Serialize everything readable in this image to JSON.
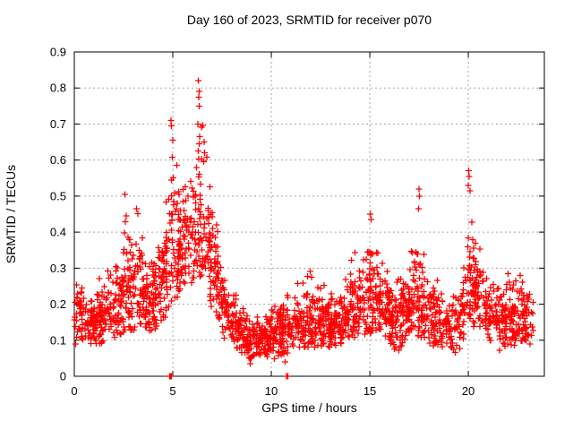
{
  "chart_data": {
    "type": "scatter",
    "title": "Day 160 of 2023, SRMTID for receiver p070",
    "xlabel": "GPS time / hours",
    "ylabel": "SRMTID / TECUs",
    "xlim": [
      0,
      23.86
    ],
    "ylim": [
      0,
      0.9
    ],
    "xticks": [
      0,
      5,
      10,
      15,
      20
    ],
    "xtick_labels": [
      "0",
      "5",
      "10",
      "15",
      "20"
    ],
    "yticks": [
      0,
      0.1,
      0.2,
      0.3,
      0.4,
      0.5,
      0.6,
      0.7,
      0.8,
      0.9
    ],
    "ytick_labels": [
      "0",
      "0.1",
      "0.2",
      "0.3",
      "0.4",
      "0.5",
      "0.6",
      "0.7",
      "0.8",
      "0.9"
    ],
    "grid": true,
    "legend": "none",
    "marker": "plus",
    "marker_size": 7,
    "marker_color": "#ff0000",
    "grid_color": "#a8a8a8",
    "axis_color": "#000000",
    "background": "#ffffff",
    "x_start": 0.0,
    "x_end": 23.3,
    "approx_points": 2300,
    "seed": 7,
    "density_profile": [
      [
        0.0,
        0.16,
        0.05,
        0.27
      ],
      [
        0.4,
        0.17,
        0.08,
        0.26
      ],
      [
        0.9,
        0.15,
        0.09,
        0.22
      ],
      [
        1.3,
        0.16,
        0.09,
        0.3
      ],
      [
        1.8,
        0.18,
        0.1,
        0.3
      ],
      [
        2.3,
        0.2,
        0.1,
        0.36
      ],
      [
        2.6,
        0.24,
        0.12,
        0.5
      ],
      [
        2.9,
        0.24,
        0.12,
        0.42
      ],
      [
        3.2,
        0.27,
        0.14,
        0.47
      ],
      [
        3.6,
        0.22,
        0.13,
        0.35
      ],
      [
        4.0,
        0.2,
        0.12,
        0.31
      ],
      [
        4.4,
        0.25,
        0.15,
        0.41
      ],
      [
        4.7,
        0.31,
        0.17,
        0.52
      ],
      [
        4.95,
        0.37,
        0.2,
        0.68
      ],
      [
        5.2,
        0.37,
        0.21,
        0.6
      ],
      [
        5.5,
        0.37,
        0.22,
        0.55
      ],
      [
        5.8,
        0.39,
        0.24,
        0.62
      ],
      [
        6.1,
        0.41,
        0.26,
        0.7
      ],
      [
        6.35,
        0.43,
        0.27,
        0.8
      ],
      [
        6.6,
        0.39,
        0.24,
        0.66
      ],
      [
        6.9,
        0.34,
        0.2,
        0.55
      ],
      [
        7.2,
        0.27,
        0.15,
        0.45
      ],
      [
        7.6,
        0.2,
        0.1,
        0.33
      ],
      [
        8.0,
        0.15,
        0.08,
        0.26
      ],
      [
        8.5,
        0.12,
        0.06,
        0.2
      ],
      [
        9.0,
        0.1,
        0.03,
        0.16
      ],
      [
        9.5,
        0.1,
        0.04,
        0.17
      ],
      [
        10.0,
        0.12,
        0.05,
        0.19
      ],
      [
        10.5,
        0.13,
        0.04,
        0.21
      ],
      [
        11.0,
        0.15,
        0.07,
        0.24
      ],
      [
        11.5,
        0.15,
        0.08,
        0.27
      ],
      [
        12.0,
        0.16,
        0.08,
        0.3
      ],
      [
        12.5,
        0.15,
        0.08,
        0.26
      ],
      [
        13.0,
        0.15,
        0.08,
        0.25
      ],
      [
        13.5,
        0.16,
        0.09,
        0.27
      ],
      [
        14.0,
        0.18,
        0.1,
        0.33
      ],
      [
        14.5,
        0.2,
        0.11,
        0.37
      ],
      [
        15.0,
        0.22,
        0.12,
        0.44
      ],
      [
        15.4,
        0.2,
        0.11,
        0.36
      ],
      [
        15.8,
        0.19,
        0.1,
        0.32
      ],
      [
        16.3,
        0.16,
        0.06,
        0.28
      ],
      [
        16.8,
        0.18,
        0.09,
        0.31
      ],
      [
        17.2,
        0.2,
        0.1,
        0.36
      ],
      [
        17.5,
        0.23,
        0.11,
        0.5
      ],
      [
        17.8,
        0.19,
        0.1,
        0.32
      ],
      [
        18.3,
        0.17,
        0.08,
        0.29
      ],
      [
        18.8,
        0.14,
        0.06,
        0.25
      ],
      [
        19.3,
        0.13,
        0.05,
        0.24
      ],
      [
        19.7,
        0.17,
        0.09,
        0.31
      ],
      [
        20.05,
        0.28,
        0.14,
        0.55
      ],
      [
        20.4,
        0.23,
        0.12,
        0.4
      ],
      [
        20.8,
        0.21,
        0.11,
        0.34
      ],
      [
        21.2,
        0.17,
        0.08,
        0.3
      ],
      [
        21.6,
        0.15,
        0.07,
        0.27
      ],
      [
        22.0,
        0.16,
        0.08,
        0.29
      ],
      [
        22.5,
        0.16,
        0.08,
        0.3
      ],
      [
        23.0,
        0.17,
        0.09,
        0.29
      ],
      [
        23.3,
        0.15,
        0.08,
        0.27
      ]
    ],
    "notable_points": [
      [
        6.3,
        0.82
      ],
      [
        6.33,
        0.79
      ],
      [
        6.31,
        0.775
      ],
      [
        6.35,
        0.75
      ],
      [
        6.28,
        0.7
      ],
      [
        6.36,
        0.665
      ],
      [
        6.33,
        0.645
      ],
      [
        6.29,
        0.625
      ],
      [
        4.9,
        0.71
      ],
      [
        4.93,
        0.695
      ],
      [
        5.0,
        0.655
      ],
      [
        6.6,
        0.65
      ],
      [
        6.62,
        0.62
      ],
      [
        6.57,
        0.595
      ],
      [
        2.57,
        0.505
      ],
      [
        3.15,
        0.465
      ],
      [
        15.02,
        0.45
      ],
      [
        15.06,
        0.435
      ],
      [
        17.5,
        0.52
      ],
      [
        17.53,
        0.5
      ],
      [
        17.47,
        0.465
      ],
      [
        20.02,
        0.57
      ],
      [
        20.05,
        0.555
      ],
      [
        20.0,
        0.53
      ],
      [
        20.08,
        0.515
      ],
      [
        10.7,
        0.04
      ]
    ],
    "zero_points": [
      4.83,
      4.85,
      4.87,
      4.89,
      4.91,
      4.93,
      10.78,
      10.83
    ]
  }
}
